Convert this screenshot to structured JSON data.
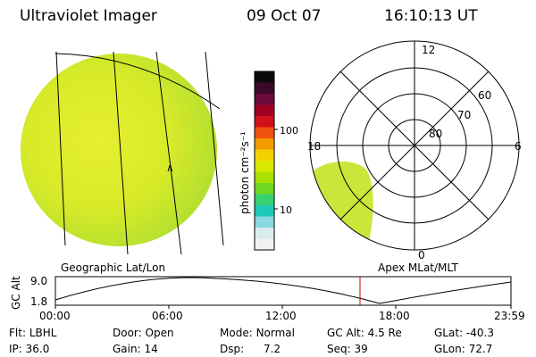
{
  "header": {
    "title": "Ultraviolet Imager",
    "date": "09 Oct 07",
    "time": "16:10:13 UT"
  },
  "colorbar": {
    "unit_label": "photon cm⁻²s⁻¹",
    "ticks": [
      "100",
      "10"
    ],
    "colors": [
      "#0b0b0b",
      "#3a0a2a",
      "#6a0a3a",
      "#a00020",
      "#d0101a",
      "#f05010",
      "#f59a00",
      "#f5d000",
      "#d8e800",
      "#a8e000",
      "#70d820",
      "#38d070",
      "#20c8b8",
      "#8ad8e0",
      "#d8ecee",
      "#f2f2f2"
    ]
  },
  "left_panel": {
    "caption": "Geographic Lat/Lon",
    "marker": "∧"
  },
  "right_panel": {
    "caption": "Apex MLat/MLT",
    "mlt_labels": {
      "top": "12",
      "left": "18",
      "right": "6",
      "bottom": "0"
    },
    "lat_labels": [
      "60",
      "70",
      "80"
    ]
  },
  "altitude_plot": {
    "axis_label": "GC Alt",
    "y_ticks": [
      "9.0",
      "1.8"
    ],
    "x_ticks": [
      "00:00",
      "06:00",
      "12:00",
      "18:00",
      "23:59"
    ],
    "current_time_marker": "16:10",
    "current_time_color": "#c00000"
  },
  "info": {
    "filter_label": "Flt:",
    "filter_value": "LBHL",
    "ip_label": "IP:",
    "ip_value": "36.0",
    "door_label": "Door:",
    "door_value": "Open",
    "gain_label": "Gain:",
    "gain_value": "14",
    "mode_label": "Mode:",
    "mode_value": "Normal",
    "dsp_label": "Dsp:",
    "dsp_value": "7.2",
    "gcalt_label": "GC Alt:",
    "gcalt_value": "4.5 Re",
    "seq_label": "Seq:",
    "seq_value": "39",
    "glat_label": "GLat:",
    "glat_value": "-40.3",
    "glon_label": "GLon:",
    "glon_value": "72.7"
  }
}
